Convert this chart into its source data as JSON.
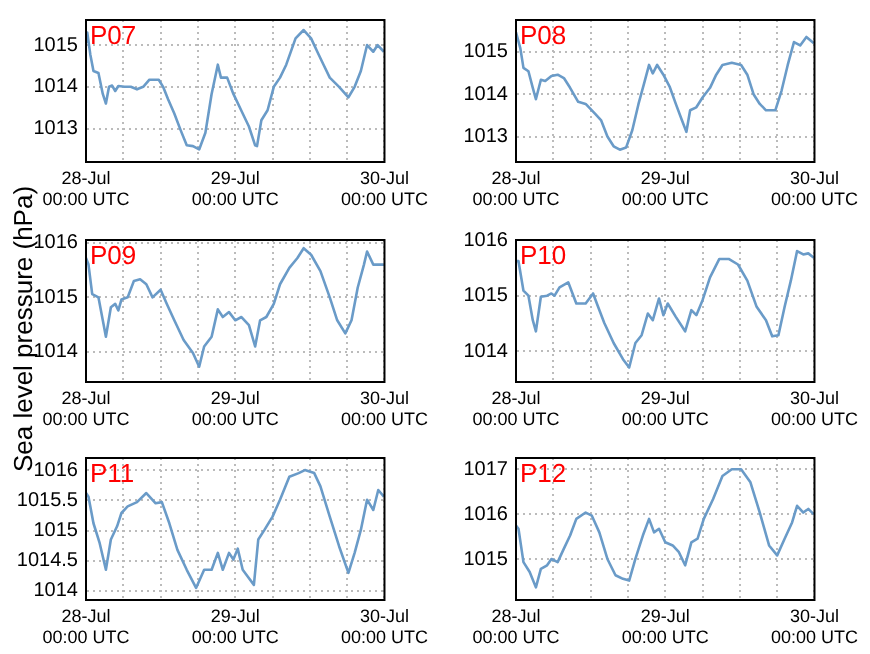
{
  "chart_data": [
    {
      "type": "line",
      "title": "P07",
      "xlim": [
        "--07-28T00:00",
        "--07-30T00:00"
      ],
      "ylim": [
        1012.2,
        1015.6
      ],
      "yticks": [
        1013,
        1014,
        1015
      ],
      "grid": true,
      "marker": "none",
      "line_style": "solid",
      "xticks": [
        {
          "value": "--07-28T00:00",
          "label": "28-Jul\n00:00 UTC"
        },
        {
          "value": "--07-28T06:00",
          "label": null
        },
        {
          "value": "--07-28T12:00",
          "label": null
        },
        {
          "value": "--07-28T18:00",
          "label": null
        },
        {
          "value": "--07-29T00:00",
          "label": "29-Jul\n00:00 UTC"
        },
        {
          "value": "--07-29T06:00",
          "label": null
        },
        {
          "value": "--07-29T12:00",
          "label": null
        },
        {
          "value": "--07-29T18:00",
          "label": null
        },
        {
          "value": "--07-30T00:00",
          "label": "30-Jul\n00:00 UTC"
        }
      ],
      "series": [
        {
          "color": "#6a9bc8",
          "x": [
            "--07-28T00:00",
            "--07-28T00:12",
            "--07-28T00:42",
            "--07-28T01:12",
            "--07-28T02:00",
            "--07-28T02:42",
            "--07-28T03:12",
            "--07-28T03:42",
            "--07-28T04:12",
            "--07-28T04:42",
            "--07-28T05:12",
            "--07-28T06:12",
            "--07-28T07:12",
            "--07-28T08:12",
            "--07-28T09:12",
            "--07-28T10:12",
            "--07-28T11:42",
            "--07-28T12:24",
            "--07-28T13:12",
            "--07-28T14:12",
            "--07-28T15:12",
            "--07-28T16:12",
            "--07-28T17:12",
            "--07-28T18:12",
            "--07-28T19:12",
            "--07-28T20:12",
            "--07-28T21:12",
            "--07-28T21:42",
            "--07-28T22:42",
            "--07-28T23:42",
            "--07-29T01:12",
            "--07-29T02:12",
            "--07-29T03:12",
            "--07-29T03:30",
            "--07-29T04:12",
            "--07-29T05:12",
            "--07-29T06:12",
            "--07-29T07:12",
            "--07-29T08:12",
            "--07-29T09:42",
            "--07-29T11:00",
            "--07-29T12:12",
            "--07-29T13:12",
            "--07-29T14:12",
            "--07-29T15:12",
            "--07-29T16:42",
            "--07-29T18:12",
            "--07-29T19:12",
            "--07-29T20:12",
            "--07-29T21:12",
            "--07-29T22:12",
            "--07-29T22:54",
            "--07-29T23:54"
          ],
          "values": [
            1015.08,
            1015.3,
            1014.77,
            1014.38,
            1014.33,
            1013.83,
            1013.6,
            1014.0,
            1014.03,
            1013.9,
            1014.02,
            1014.0,
            1014.0,
            1013.94,
            1014.0,
            1014.17,
            1014.17,
            1014.0,
            1013.7,
            1013.36,
            1012.97,
            1012.6,
            1012.58,
            1012.5,
            1012.9,
            1013.83,
            1014.53,
            1014.22,
            1014.22,
            1013.83,
            1013.36,
            1013.05,
            1012.6,
            1012.58,
            1013.2,
            1013.44,
            1014.0,
            1014.22,
            1014.53,
            1015.16,
            1015.36,
            1015.16,
            1014.84,
            1014.53,
            1014.22,
            1014.0,
            1013.75,
            1014.0,
            1014.38,
            1015.0,
            1014.84,
            1015.0,
            1014.84
          ]
        }
      ]
    },
    {
      "type": "line",
      "title": "P08",
      "xlim": [
        "--07-28T00:00",
        "--07-30T00:00"
      ],
      "ylim": [
        1012.4,
        1015.75
      ],
      "yticks": [
        1013,
        1014,
        1015
      ],
      "grid": true,
      "marker": "none",
      "line_style": "solid",
      "xticks": [
        {
          "value": "--07-28T00:00",
          "label": "28-Jul\n00:00 UTC"
        },
        {
          "value": "--07-28T06:00",
          "label": null
        },
        {
          "value": "--07-28T12:00",
          "label": null
        },
        {
          "value": "--07-28T18:00",
          "label": null
        },
        {
          "value": "--07-29T00:00",
          "label": "29-Jul\n00:00 UTC"
        },
        {
          "value": "--07-29T06:00",
          "label": null
        },
        {
          "value": "--07-29T12:00",
          "label": null
        },
        {
          "value": "--07-29T18:00",
          "label": null
        },
        {
          "value": "--07-30T00:00",
          "label": "30-Jul\n00:00 UTC"
        }
      ],
      "series": [
        {
          "color": "#6a9bc8",
          "x": [
            "--07-28T00:00",
            "--07-28T00:42",
            "--07-28T01:12",
            "--07-28T02:00",
            "--07-28T02:42",
            "--07-28T03:12",
            "--07-28T04:00",
            "--07-28T04:42",
            "--07-28T05:42",
            "--07-28T06:42",
            "--07-28T07:42",
            "--07-28T08:42",
            "--07-28T10:00",
            "--07-28T11:12",
            "--07-28T12:42",
            "--07-28T13:42",
            "--07-28T14:42",
            "--07-28T15:42",
            "--07-28T16:42",
            "--07-28T17:42",
            "--07-28T18:42",
            "--07-28T19:42",
            "--07-28T20:42",
            "--07-28T21:24",
            "--07-28T22:00",
            "--07-28T22:42",
            "--07-28T23:42",
            "--07-29T00:42",
            "--07-29T01:42",
            "--07-29T02:42",
            "--07-29T03:24",
            "--07-29T04:00",
            "--07-29T05:00",
            "--07-29T06:00",
            "--07-29T07:12",
            "--07-29T08:12",
            "--07-29T09:12",
            "--07-29T10:42",
            "--07-29T12:12",
            "--07-29T13:12",
            "--07-29T14:12",
            "--07-29T15:12",
            "--07-29T16:12",
            "--07-29T17:42",
            "--07-29T18:42",
            "--07-29T19:42",
            "--07-29T20:42",
            "--07-29T21:42",
            "--07-29T22:42",
            "--07-29T23:54"
          ],
          "values": [
            1015.46,
            1015.08,
            1014.62,
            1014.54,
            1014.15,
            1013.88,
            1014.34,
            1014.31,
            1014.43,
            1014.46,
            1014.38,
            1014.15,
            1013.82,
            1013.77,
            1013.54,
            1013.38,
            1013.0,
            1012.77,
            1012.69,
            1012.74,
            1013.15,
            1013.77,
            1014.31,
            1014.69,
            1014.49,
            1014.69,
            1014.46,
            1014.18,
            1013.77,
            1013.38,
            1013.11,
            1013.62,
            1013.69,
            1013.92,
            1014.15,
            1014.46,
            1014.69,
            1014.74,
            1014.69,
            1014.46,
            1014.0,
            1013.77,
            1013.62,
            1013.62,
            1014.08,
            1014.69,
            1015.23,
            1015.15,
            1015.35,
            1015.2
          ]
        }
      ]
    },
    {
      "type": "line",
      "title": "P09",
      "ylabel": "Sea level pressure (hPa)",
      "xlim": [
        "--07-28T00:00",
        "--07-30T00:00"
      ],
      "ylim": [
        1013.45,
        1016.05
      ],
      "yticks": [
        1014,
        1015,
        1016
      ],
      "grid": true,
      "marker": "none",
      "line_style": "solid",
      "xticks": [
        {
          "value": "--07-28T00:00",
          "label": "28-Jul\n00:00 UTC"
        },
        {
          "value": "--07-28T06:00",
          "label": null
        },
        {
          "value": "--07-28T12:00",
          "label": null
        },
        {
          "value": "--07-28T18:00",
          "label": null
        },
        {
          "value": "--07-29T00:00",
          "label": "29-Jul\n00:00 UTC"
        },
        {
          "value": "--07-29T06:00",
          "label": null
        },
        {
          "value": "--07-29T12:00",
          "label": null
        },
        {
          "value": "--07-29T18:00",
          "label": null
        },
        {
          "value": "--07-30T00:00",
          "label": "30-Jul\n00:00 UTC"
        }
      ],
      "series": [
        {
          "color": "#6a9bc8",
          "x": [
            "--07-28T00:00",
            "--07-28T00:24",
            "--07-28T01:00",
            "--07-28T02:00",
            "--07-28T02:42",
            "--07-28T03:12",
            "--07-28T04:00",
            "--07-28T04:42",
            "--07-28T05:12",
            "--07-28T05:42",
            "--07-28T06:42",
            "--07-28T07:42",
            "--07-28T08:42",
            "--07-28T09:42",
            "--07-28T10:42",
            "--07-28T12:00",
            "--07-28T13:00",
            "--07-28T14:12",
            "--07-28T15:42",
            "--07-28T17:12",
            "--07-28T18:12",
            "--07-28T19:00",
            "--07-28T20:12",
            "--07-28T21:12",
            "--07-28T22:00",
            "--07-28T23:00",
            "--07-29T00:00",
            "--07-29T01:00",
            "--07-29T02:12",
            "--07-29T03:12",
            "--07-29T04:00",
            "--07-29T05:00",
            "--07-29T06:12",
            "--07-29T07:12",
            "--07-29T08:42",
            "--07-29T10:00",
            "--07-29T11:00",
            "--07-29T12:12",
            "--07-29T13:42",
            "--07-29T15:12",
            "--07-29T16:24",
            "--07-29T17:42",
            "--07-29T18:42",
            "--07-29T19:42",
            "--07-29T20:42",
            "--07-29T21:12",
            "--07-29T22:12",
            "--07-29T23:54"
          ],
          "values": [
            1015.72,
            1015.6,
            1015.06,
            1015.0,
            1014.58,
            1014.28,
            1014.82,
            1014.88,
            1014.76,
            1014.96,
            1015.0,
            1015.3,
            1015.33,
            1015.24,
            1015.0,
            1015.14,
            1014.88,
            1014.58,
            1014.22,
            1013.98,
            1013.73,
            1014.1,
            1014.28,
            1014.78,
            1014.64,
            1014.73,
            1014.58,
            1014.64,
            1014.49,
            1014.1,
            1014.58,
            1014.64,
            1014.88,
            1015.24,
            1015.54,
            1015.72,
            1015.9,
            1015.78,
            1015.48,
            1015.0,
            1014.58,
            1014.34,
            1014.58,
            1015.18,
            1015.6,
            1015.84,
            1015.6,
            1015.6
          ]
        }
      ]
    },
    {
      "type": "line",
      "title": "P10",
      "xlim": [
        "--07-28T00:00",
        "--07-30T00:00"
      ],
      "ylim": [
        1013.45,
        1016
      ],
      "yticks": [
        1014,
        1015,
        1016
      ],
      "grid": true,
      "marker": "none",
      "line_style": "solid",
      "xticks": [
        {
          "value": "--07-28T00:00",
          "label": "28-Jul\n00:00 UTC"
        },
        {
          "value": "--07-28T06:00",
          "label": null
        },
        {
          "value": "--07-28T12:00",
          "label": null
        },
        {
          "value": "--07-28T18:00",
          "label": null
        },
        {
          "value": "--07-29T00:00",
          "label": "29-Jul\n00:00 UTC"
        },
        {
          "value": "--07-29T06:00",
          "label": null
        },
        {
          "value": "--07-29T12:00",
          "label": null
        },
        {
          "value": "--07-29T18:00",
          "label": null
        },
        {
          "value": "--07-30T00:00",
          "label": "30-Jul\n00:00 UTC"
        }
      ],
      "series": [
        {
          "color": "#6a9bc8",
          "x": [
            "--07-28T00:00",
            "--07-28T00:24",
            "--07-28T01:12",
            "--07-28T02:00",
            "--07-28T02:42",
            "--07-28T03:12",
            "--07-28T04:00",
            "--07-28T05:00",
            "--07-28T05:42",
            "--07-28T06:12",
            "--07-28T07:00",
            "--07-28T08:24",
            "--07-28T09:42",
            "--07-28T11:12",
            "--07-28T12:24",
            "--07-28T13:12",
            "--07-28T14:12",
            "--07-28T15:42",
            "--07-28T17:12",
            "--07-28T18:12",
            "--07-28T19:12",
            "--07-28T20:12",
            "--07-28T21:12",
            "--07-28T22:00",
            "--07-28T23:00",
            "--07-28T23:42",
            "--07-29T00:24",
            "--07-29T01:42",
            "--07-29T03:12",
            "--07-29T04:12",
            "--07-29T05:00",
            "--07-29T06:00",
            "--07-29T07:12",
            "--07-29T08:42",
            "--07-29T10:12",
            "--07-29T11:42",
            "--07-29T13:12",
            "--07-29T14:42",
            "--07-29T16:12",
            "--07-29T17:12",
            "--07-29T18:12",
            "--07-29T19:12",
            "--07-29T20:12",
            "--07-29T21:12",
            "--07-29T22:12",
            "--07-29T23:00",
            "--07-29T23:54"
          ],
          "values": [
            1015.62,
            1015.62,
            1015.09,
            1015.0,
            1014.56,
            1014.36,
            1014.98,
            1015.0,
            1015.04,
            1015.0,
            1015.15,
            1015.24,
            1014.86,
            1014.86,
            1015.04,
            1014.8,
            1014.51,
            1014.15,
            1013.86,
            1013.71,
            1014.15,
            1014.29,
            1014.68,
            1014.56,
            1014.95,
            1014.65,
            1014.86,
            1014.62,
            1014.36,
            1014.74,
            1014.65,
            1014.92,
            1015.33,
            1015.66,
            1015.66,
            1015.56,
            1015.27,
            1014.8,
            1014.56,
            1014.27,
            1014.29,
            1014.8,
            1015.27,
            1015.8,
            1015.74,
            1015.76,
            1015.68
          ]
        }
      ]
    },
    {
      "type": "line",
      "title": "P11",
      "xlim": [
        "--07-28T00:00",
        "--07-30T00:00"
      ],
      "ylim": [
        1013.85,
        1016.2
      ],
      "yticks": [
        1014,
        1014.5,
        1015,
        1015.5,
        1016
      ],
      "grid": true,
      "marker": "none",
      "line_style": "solid",
      "xticks": [
        {
          "value": "--07-28T00:00",
          "label": "28-Jul\n00:00 UTC"
        },
        {
          "value": "--07-28T06:00",
          "label": null
        },
        {
          "value": "--07-28T12:00",
          "label": null
        },
        {
          "value": "--07-28T18:00",
          "label": null
        },
        {
          "value": "--07-29T00:00",
          "label": "29-Jul\n00:00 UTC"
        },
        {
          "value": "--07-29T06:00",
          "label": null
        },
        {
          "value": "--07-29T12:00",
          "label": null
        },
        {
          "value": "--07-29T18:00",
          "label": null
        },
        {
          "value": "--07-30T00:00",
          "label": "30-Jul\n00:00 UTC"
        }
      ],
      "series": [
        {
          "color": "#6a9bc8",
          "x": [
            "--07-28T00:00",
            "--07-28T00:24",
            "--07-28T01:12",
            "--07-28T02:12",
            "--07-28T03:12",
            "--07-28T04:00",
            "--07-28T05:00",
            "--07-28T05:42",
            "--07-28T06:42",
            "--07-28T08:12",
            "--07-28T09:42",
            "--07-28T11:12",
            "--07-28T12:12",
            "--07-28T13:24",
            "--07-28T14:42",
            "--07-28T16:12",
            "--07-28T17:42",
            "--07-28T19:00",
            "--07-28T20:12",
            "--07-28T21:12",
            "--07-28T22:00",
            "--07-28T23:00",
            "--07-28T23:42",
            "--07-29T00:24",
            "--07-29T01:12",
            "--07-29T02:00",
            "--07-29T03:00",
            "--07-29T03:42",
            "--07-29T04:42",
            "--07-29T06:00",
            "--07-29T07:12",
            "--07-29T08:42",
            "--07-29T10:12",
            "--07-29T11:12",
            "--07-29T12:42",
            "--07-29T13:42",
            "--07-29T15:12",
            "--07-29T16:42",
            "--07-29T18:12",
            "--07-29T19:12",
            "--07-29T20:12",
            "--07-29T21:12",
            "--07-29T22:12",
            "--07-29T23:00",
            "--07-29T23:54"
          ],
          "values": [
            1015.62,
            1015.56,
            1015.12,
            1014.79,
            1014.35,
            1014.85,
            1015.07,
            1015.29,
            1015.4,
            1015.47,
            1015.62,
            1015.45,
            1015.47,
            1015.12,
            1014.68,
            1014.35,
            1014.05,
            1014.35,
            1014.35,
            1014.63,
            1014.35,
            1014.63,
            1014.52,
            1014.7,
            1014.35,
            1014.24,
            1014.1,
            1014.85,
            1015.01,
            1015.23,
            1015.51,
            1015.89,
            1015.95,
            1016.0,
            1015.95,
            1015.73,
            1015.23,
            1014.74,
            1014.3,
            1014.63,
            1015.01,
            1015.51,
            1015.34,
            1015.67,
            1015.56
          ]
        }
      ]
    },
    {
      "type": "line",
      "title": "P12",
      "xlim": [
        "--07-28T00:00",
        "--07-30T00:00"
      ],
      "ylim": [
        1014.1,
        1017.25
      ],
      "yticks": [
        1015,
        1016,
        1017
      ],
      "grid": true,
      "marker": "none",
      "line_style": "solid",
      "xticks": [
        {
          "value": "--07-28T00:00",
          "label": "28-Jul\n00:00 UTC"
        },
        {
          "value": "--07-28T06:00",
          "label": null
        },
        {
          "value": "--07-28T12:00",
          "label": null
        },
        {
          "value": "--07-28T18:00",
          "label": null
        },
        {
          "value": "--07-29T00:00",
          "label": "29-Jul\n00:00 UTC"
        },
        {
          "value": "--07-29T06:00",
          "label": null
        },
        {
          "value": "--07-29T12:00",
          "label": null
        },
        {
          "value": "--07-29T18:00",
          "label": null
        },
        {
          "value": "--07-30T00:00",
          "label": "30-Jul\n00:00 UTC"
        }
      ],
      "series": [
        {
          "color": "#6a9bc8",
          "x": [
            "--07-28T00:00",
            "--07-28T00:24",
            "--07-28T01:12",
            "--07-28T02:12",
            "--07-28T03:12",
            "--07-28T04:00",
            "--07-28T05:00",
            "--07-28T05:42",
            "--07-28T06:42",
            "--07-28T07:42",
            "--07-28T08:42",
            "--07-28T09:42",
            "--07-28T11:12",
            "--07-28T12:12",
            "--07-28T13:24",
            "--07-28T14:42",
            "--07-28T16:00",
            "--07-28T17:12",
            "--07-28T18:12",
            "--07-28T19:12",
            "--07-28T20:24",
            "--07-28T21:24",
            "--07-28T22:12",
            "--07-28T23:00",
            "--07-29T00:00",
            "--07-29T01:12",
            "--07-29T02:12",
            "--07-29T03:12",
            "--07-29T04:12",
            "--07-29T05:12",
            "--07-29T06:12",
            "--07-29T07:42",
            "--07-29T09:12",
            "--07-29T10:42",
            "--07-29T12:12",
            "--07-29T13:42",
            "--07-29T15:12",
            "--07-29T16:42",
            "--07-29T18:00",
            "--07-29T19:12",
            "--07-29T20:24",
            "--07-29T21:12",
            "--07-29T22:12",
            "--07-29T23:00",
            "--07-29T23:54"
          ],
          "values": [
            1015.75,
            1015.68,
            1014.94,
            1014.72,
            1014.38,
            1014.79,
            1014.87,
            1015.01,
            1014.94,
            1015.24,
            1015.53,
            1015.9,
            1016.04,
            1015.97,
            1015.6,
            1015.01,
            1014.65,
            1014.57,
            1014.53,
            1015.01,
            1015.53,
            1015.9,
            1015.6,
            1015.68,
            1015.38,
            1015.31,
            1015.16,
            1014.87,
            1015.38,
            1015.46,
            1015.9,
            1016.34,
            1016.85,
            1017.0,
            1017.0,
            1016.71,
            1016.04,
            1015.31,
            1015.09,
            1015.46,
            1015.82,
            1016.19,
            1016.04,
            1016.12,
            1016.0
          ]
        }
      ]
    }
  ]
}
